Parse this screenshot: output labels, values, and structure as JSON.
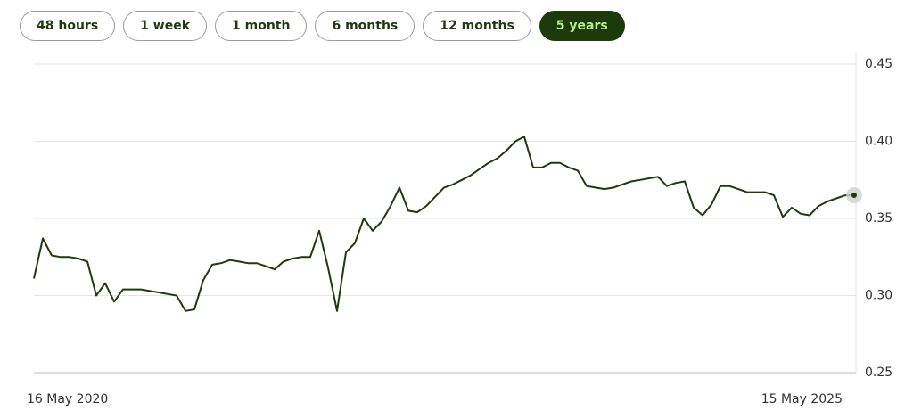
{
  "tabs": [
    {
      "label": "48 hours",
      "selected": false
    },
    {
      "label": "1 week",
      "selected": false
    },
    {
      "label": "1 month",
      "selected": false
    },
    {
      "label": "6 months",
      "selected": false
    },
    {
      "label": "12 months",
      "selected": false
    },
    {
      "label": "5 years",
      "selected": true
    }
  ],
  "chart_data": {
    "type": "line",
    "x_labels": [
      "16 May 2020",
      "15 May 2025"
    ],
    "ylim": [
      0.25,
      0.45
    ],
    "yticks": [
      {
        "value": 0.25,
        "label": "0.25"
      },
      {
        "value": 0.3,
        "label": "0.30"
      },
      {
        "value": 0.35,
        "label": "0.35"
      },
      {
        "value": 0.4,
        "label": "0.40"
      },
      {
        "value": 0.45,
        "label": "0.45"
      }
    ],
    "grid": true,
    "series": [
      {
        "color": "#1f3a0f",
        "values": [
          0.311,
          0.337,
          0.326,
          0.325,
          0.325,
          0.324,
          0.322,
          0.3,
          0.308,
          0.296,
          0.304,
          0.304,
          0.304,
          0.303,
          0.302,
          0.301,
          0.3,
          0.29,
          0.291,
          0.31,
          0.32,
          0.321,
          0.323,
          0.322,
          0.321,
          0.321,
          0.319,
          0.317,
          0.322,
          0.324,
          0.325,
          0.325,
          0.342,
          0.318,
          0.29,
          0.328,
          0.334,
          0.35,
          0.342,
          0.348,
          0.358,
          0.37,
          0.355,
          0.354,
          0.358,
          0.364,
          0.37,
          0.372,
          0.375,
          0.378,
          0.382,
          0.386,
          0.389,
          0.394,
          0.4,
          0.403,
          0.383,
          0.383,
          0.386,
          0.386,
          0.383,
          0.381,
          0.371,
          0.37,
          0.369,
          0.37,
          0.372,
          0.374,
          0.375,
          0.376,
          0.377,
          0.371,
          0.373,
          0.374,
          0.357,
          0.352,
          0.359,
          0.371,
          0.371,
          0.369,
          0.367,
          0.367,
          0.367,
          0.365,
          0.351,
          0.357,
          0.353,
          0.352,
          0.358,
          0.361,
          0.363,
          0.365,
          0.365
        ]
      }
    ]
  }
}
